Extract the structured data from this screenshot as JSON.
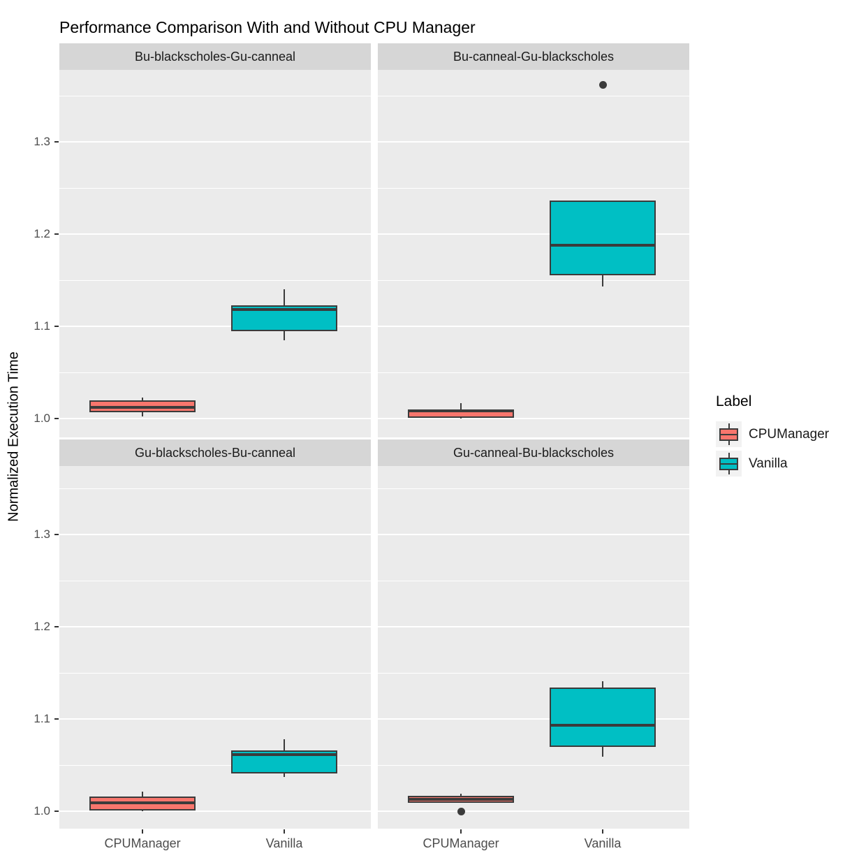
{
  "title": "Performance Comparison With and Without CPU Manager",
  "y_axis_label": "Normalized Execution Time",
  "legend": {
    "title": "Label",
    "entries": [
      {
        "label": "CPUManager",
        "color": "#F8766D"
      },
      {
        "label": "Vanilla",
        "color": "#00BFC4"
      }
    ]
  },
  "colors": {
    "panel_background": "#EBEBEB",
    "strip_background": "#D6D6D6",
    "gridline": "#FFFFFF",
    "box_outline": "#3B3B3B",
    "cpumanager_fill": "#F8766D",
    "vanilla_fill": "#00BFC4",
    "tick_label": "#4D4D4D",
    "legend_key_background": "#F2F2F2"
  },
  "chart_data": {
    "type": "boxplot",
    "title": "Performance Comparison With and Without CPU Manager",
    "ylabel": "Normalized Execution Time",
    "categories": [
      "CPUManager",
      "Vanilla"
    ],
    "y_ticks": [
      "1.0",
      "1.1",
      "1.2",
      "1.3"
    ],
    "ylim": [
      0.98,
      1.376
    ],
    "grid": "major-and-minor-white-on-grey",
    "legend_position": "right",
    "facets": [
      {
        "label": "Bu-blackscholes-Gu-canneal",
        "boxes": [
          {
            "group": "CPUManager",
            "whisker_low": 1.002,
            "q1": 1.007,
            "median": 1.012,
            "q3": 1.02,
            "whisker_high": 1.023,
            "outliers": []
          },
          {
            "group": "Vanilla",
            "whisker_low": 1.085,
            "q1": 1.095,
            "median": 1.118,
            "q3": 1.123,
            "whisker_high": 1.14,
            "outliers": []
          }
        ]
      },
      {
        "label": "Bu-canneal-Gu-blackscholes",
        "boxes": [
          {
            "group": "CPUManager",
            "whisker_low": 1.0,
            "q1": 1.001,
            "median": 1.008,
            "q3": 1.01,
            "whisker_high": 1.017,
            "outliers": []
          },
          {
            "group": "Vanilla",
            "whisker_low": 1.143,
            "q1": 1.155,
            "median": 1.188,
            "q3": 1.236,
            "whisker_high": 1.236,
            "outliers": [
              1.362
            ]
          }
        ]
      },
      {
        "label": "Gu-blackscholes-Bu-canneal",
        "boxes": [
          {
            "group": "CPUManager",
            "whisker_low": 1.0,
            "q1": 1.001,
            "median": 1.009,
            "q3": 1.016,
            "whisker_high": 1.021,
            "outliers": []
          },
          {
            "group": "Vanilla",
            "whisker_low": 1.037,
            "q1": 1.041,
            "median": 1.061,
            "q3": 1.066,
            "whisker_high": 1.078,
            "outliers": []
          }
        ]
      },
      {
        "label": "Gu-canneal-Bu-blackscholes",
        "boxes": [
          {
            "group": "CPUManager",
            "whisker_low": 1.009,
            "q1": 1.009,
            "median": 1.013,
            "q3": 1.017,
            "whisker_high": 1.019,
            "outliers": [
              1.0
            ]
          },
          {
            "group": "Vanilla",
            "whisker_low": 1.059,
            "q1": 1.07,
            "median": 1.093,
            "q3": 1.134,
            "whisker_high": 1.141,
            "outliers": []
          }
        ]
      }
    ]
  }
}
